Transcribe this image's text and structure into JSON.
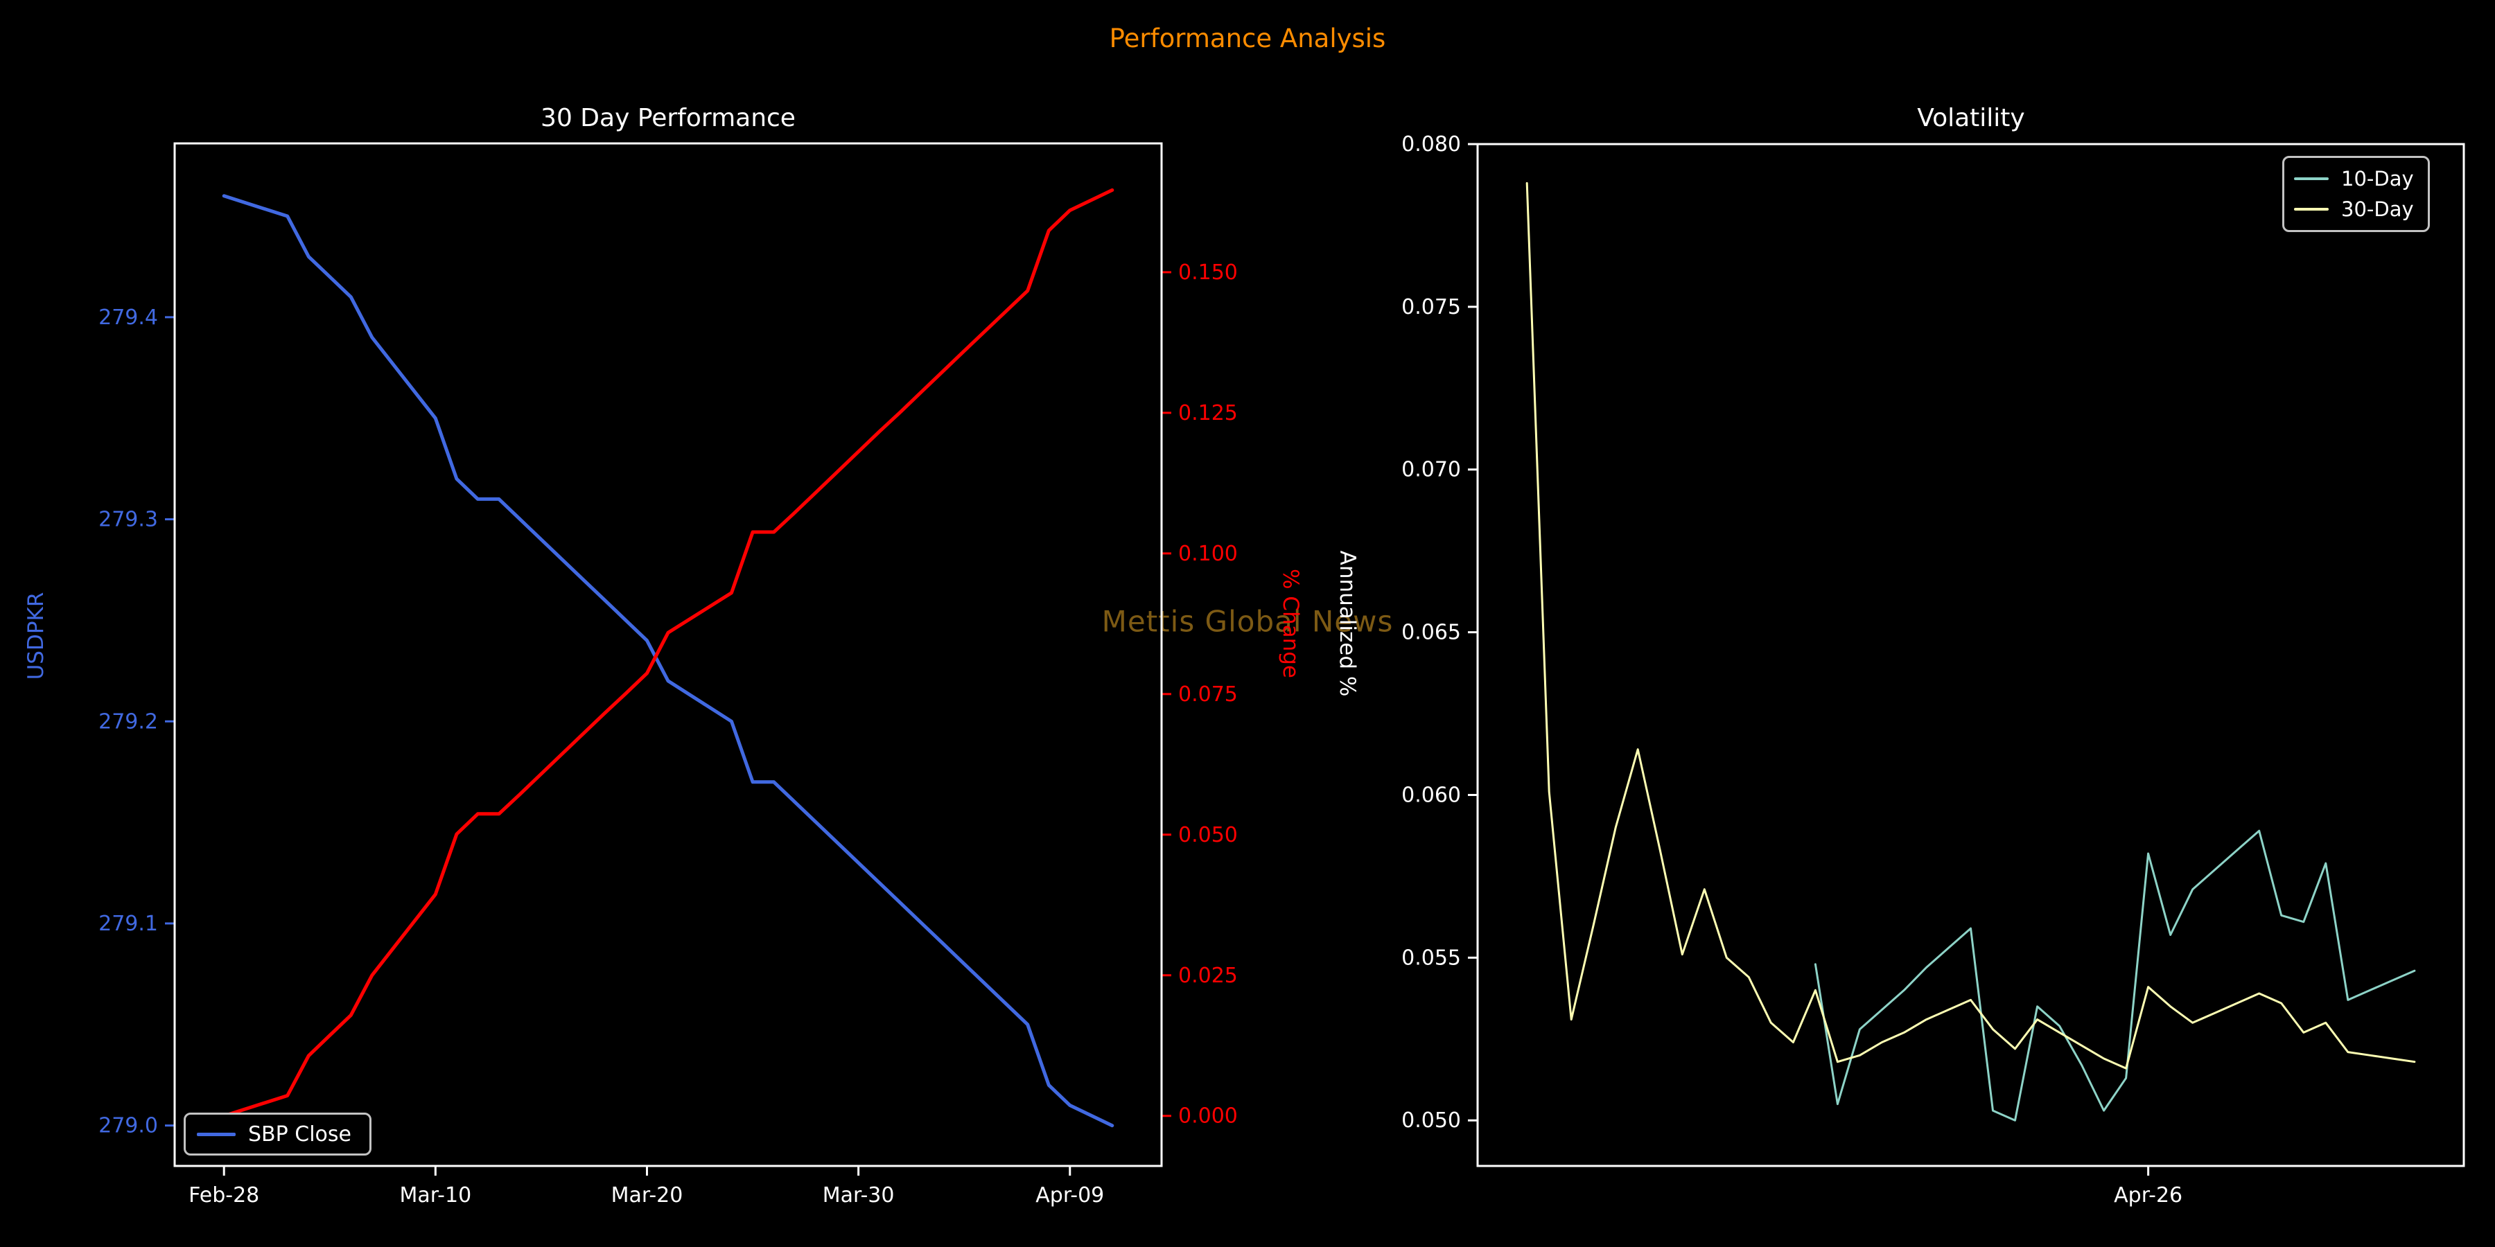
{
  "page": {
    "suptitle": "Performance Analysis",
    "suptitle_color": "#ff8c00",
    "background": "#000000",
    "watermark": {
      "text": "Mettis Global News",
      "color": "#7d5a14"
    }
  },
  "chart_data": [
    {
      "id": "performance",
      "type": "line",
      "title": "30 Day Performance",
      "x_axis": {
        "tick_labels": [
          "Feb-28",
          "Mar-10",
          "Mar-20",
          "Mar-30",
          "Apr-09"
        ],
        "tick_days": [
          0,
          10,
          20,
          30,
          40
        ],
        "day_span": 42
      },
      "y_left": {
        "label": "USDPKR",
        "color": "#4169e1",
        "tick_labels": [
          "279.0",
          "279.1",
          "279.2",
          "279.3",
          "279.4"
        ],
        "ylim": [
          278.98,
          279.486
        ]
      },
      "y_right": {
        "label": "% Change",
        "color": "#ff0000",
        "tick_labels": [
          "0.000",
          "0.025",
          "0.050",
          "0.075",
          "0.100",
          "0.125",
          "0.150"
        ],
        "ylim": [
          -0.0089,
          0.1729
        ]
      },
      "legend": {
        "position": "lower-left",
        "entries": [
          {
            "label": "SBP Close",
            "color": "#4169e1"
          }
        ]
      },
      "series": [
        {
          "name": "SBP Close",
          "axis": "left",
          "color": "#4169e1",
          "line_width": 5,
          "days": [
            0,
            3,
            4,
            5,
            6,
            7,
            10,
            11,
            12,
            13,
            14,
            17,
            18,
            19,
            20,
            21,
            24,
            25,
            26,
            27,
            28,
            31,
            32,
            33,
            34,
            35,
            38,
            39,
            40,
            41,
            42
          ],
          "values": [
            279.46,
            279.45,
            279.43,
            279.42,
            279.41,
            279.39,
            279.35,
            279.32,
            279.31,
            279.31,
            279.3,
            279.27,
            279.26,
            279.25,
            279.24,
            279.22,
            279.2,
            279.17,
            279.17,
            279.16,
            279.15,
            279.12,
            279.11,
            279.1,
            279.09,
            279.08,
            279.05,
            279.02,
            279.01,
            279.005,
            279.0
          ]
        },
        {
          "name": "% Change",
          "axis": "right",
          "color": "#ff0000",
          "line_width": 5,
          "days": [
            0,
            3,
            4,
            5,
            6,
            7,
            10,
            11,
            12,
            13,
            14,
            17,
            18,
            19,
            20,
            21,
            24,
            25,
            26,
            27,
            28,
            31,
            32,
            33,
            34,
            35,
            38,
            39,
            40,
            41,
            42
          ],
          "values": [
            0.0,
            0.0036,
            0.0107,
            0.0143,
            0.0179,
            0.025,
            0.0394,
            0.0501,
            0.0537,
            0.0537,
            0.0572,
            0.068,
            0.0716,
            0.0751,
            0.0787,
            0.0859,
            0.093,
            0.1038,
            0.1038,
            0.1073,
            0.1109,
            0.1217,
            0.1252,
            0.1288,
            0.1324,
            0.136,
            0.1467,
            0.1574,
            0.161,
            0.1628,
            0.1646
          ]
        }
      ]
    },
    {
      "id": "volatility",
      "type": "line",
      "title": "Volatility",
      "x_axis": {
        "tick_labels": [
          "Apr-26"
        ],
        "tick_days": [
          28
        ],
        "day_span": 40
      },
      "y_left": {
        "label": "Annualized %",
        "color": "#ffffff",
        "tick_labels": [
          "0.050",
          "0.055",
          "0.060",
          "0.065",
          "0.070",
          "0.075",
          "0.080"
        ],
        "ylim": [
          0.0486,
          0.08
        ]
      },
      "legend": {
        "position": "upper-right",
        "entries": [
          {
            "label": "10-Day",
            "color": "#8dd3c7"
          },
          {
            "label": "30-Day",
            "color": "#feffb3"
          }
        ]
      },
      "series": [
        {
          "name": "10-Day",
          "axis": "left",
          "color": "#8dd3c7",
          "line_width": 3,
          "days": [
            13,
            14,
            15,
            16,
            17,
            18,
            19,
            20,
            21,
            22,
            23,
            24,
            25,
            26,
            27,
            28,
            29,
            30,
            31,
            32,
            33,
            34,
            35,
            36,
            37,
            38,
            39,
            40
          ],
          "values": [
            0.0548,
            0.0505,
            0.0528,
            0.0534,
            0.054,
            0.0547,
            0.0553,
            0.0559,
            0.0503,
            0.05,
            0.0535,
            0.0529,
            0.0517,
            0.0503,
            0.0513,
            0.0582,
            0.0557,
            0.0571,
            0.0577,
            0.0583,
            0.0589,
            0.0563,
            0.0561,
            0.0579,
            0.0537,
            0.054,
            0.0543,
            0.0546
          ]
        },
        {
          "name": "30-Day",
          "axis": "left",
          "color": "#feffb3",
          "line_width": 3,
          "days": [
            0,
            1,
            2,
            3,
            4,
            5,
            6,
            7,
            8,
            9,
            10,
            11,
            12,
            13,
            14,
            15,
            16,
            17,
            18,
            19,
            20,
            21,
            22,
            23,
            24,
            25,
            26,
            27,
            28,
            29,
            30,
            31,
            32,
            33,
            34,
            35,
            36,
            37,
            38,
            39,
            40
          ],
          "values": [
            0.0788,
            0.0601,
            0.0531,
            0.056,
            0.059,
            0.0614,
            0.0583,
            0.0551,
            0.0571,
            0.055,
            0.0544,
            0.053,
            0.0524,
            0.054,
            0.0518,
            0.052,
            0.0524,
            0.0527,
            0.0531,
            0.0534,
            0.0537,
            0.0528,
            0.0522,
            0.0531,
            0.0527,
            0.0523,
            0.0519,
            0.0516,
            0.0541,
            0.0535,
            0.053,
            0.0533,
            0.0536,
            0.0539,
            0.0536,
            0.0527,
            0.053,
            0.0521,
            0.052,
            0.0519,
            0.0518
          ]
        }
      ]
    }
  ]
}
